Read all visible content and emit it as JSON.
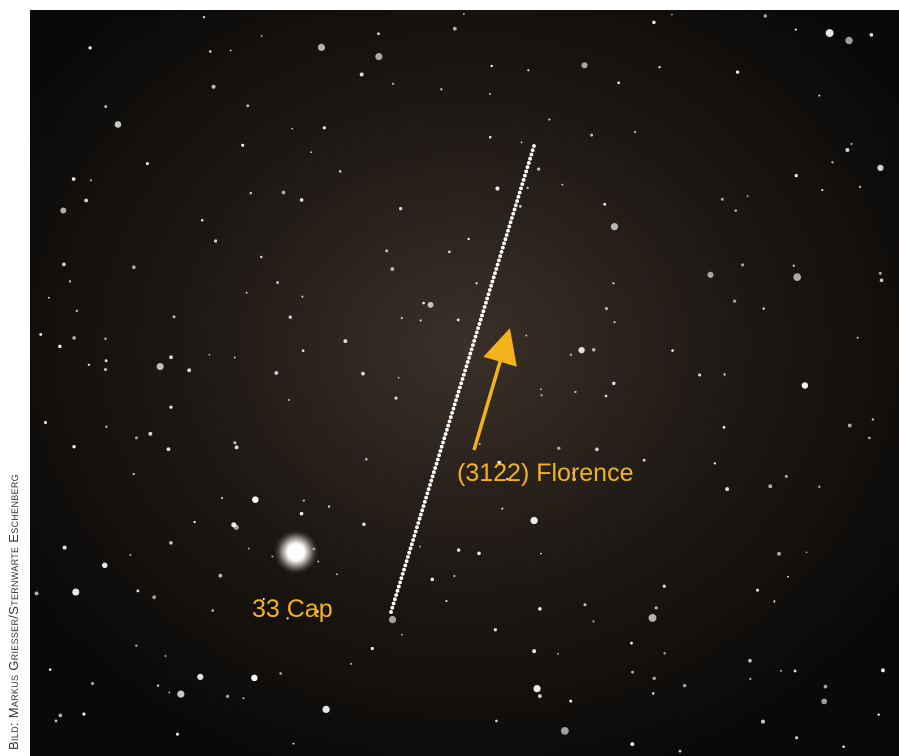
{
  "image": {
    "credit": "Bild: Markus Griesser/Sternwarte Eschenberg",
    "labels": {
      "asteroid": "(3122) Florence",
      "star": "33 Cap"
    }
  }
}
